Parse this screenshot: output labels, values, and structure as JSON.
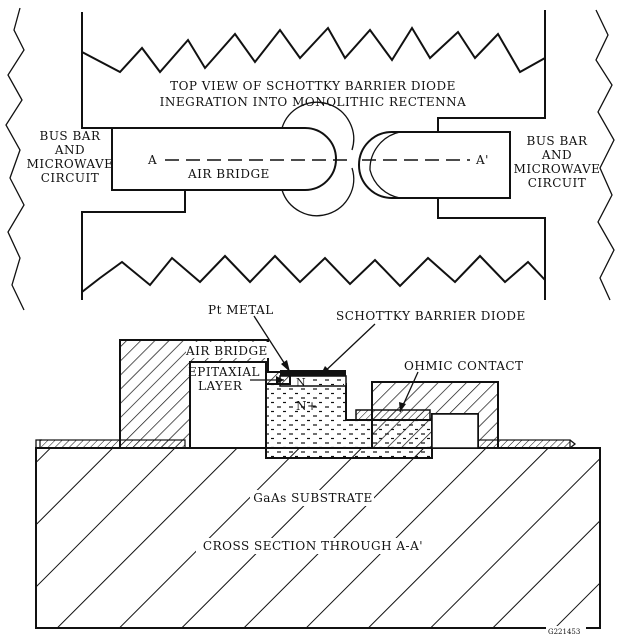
{
  "top_view": {
    "title_line1": "TOP VIEW OF SCHOTTKY BARRIER DIODE",
    "title_line2": "INEGRATION INTO MONOLITHIC RECTENNA",
    "left_label": [
      "BUS BAR",
      "AND",
      "MICROWAVE",
      "CIRCUIT"
    ],
    "right_label": [
      "BUS BAR",
      "AND",
      "MICROWAVE",
      "CIRCUIT"
    ],
    "marker_a": "A",
    "marker_a_prime": "A'",
    "air_bridge": "AIR BRIDGE"
  },
  "cross_section": {
    "pt_metal": "Pt METAL",
    "schottky_diode": "SCHOTTKY BARRIER DIODE",
    "air_bridge": "AIR BRIDGE",
    "epitaxial_line1": "EPITAXIAL",
    "epitaxial_line2": "LAYER",
    "n_label": "N",
    "n_plus_label": "N+",
    "ohmic_contact": "OHMIC CONTACT",
    "substrate": "GaAs  SUBSTRATE",
    "caption": "CROSS SECTION THROUGH  A-A'"
  },
  "figure_id": "G221453"
}
